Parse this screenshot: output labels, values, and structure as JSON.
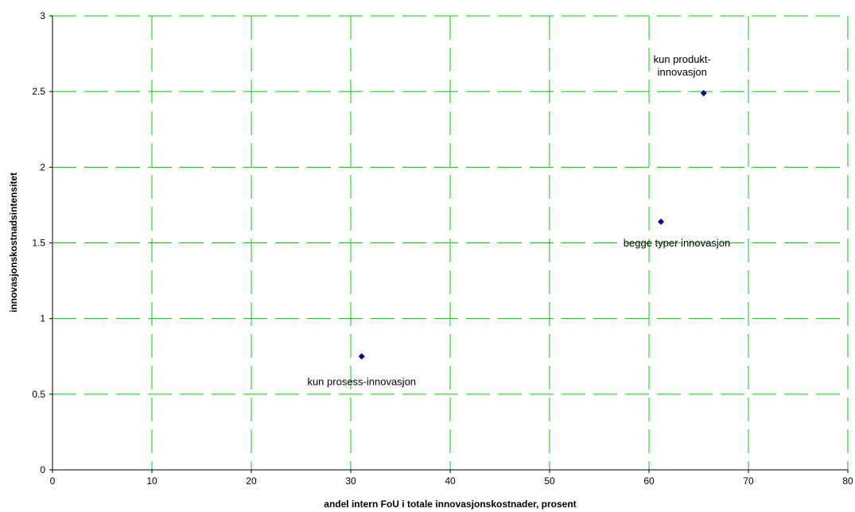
{
  "chart_data": {
    "type": "scatter",
    "title": "",
    "xlabel": "andel intern FoU i totale innovasjonskostnader, prosent",
    "ylabel": "innovasjonskostnadsintensitet",
    "xlim": [
      0,
      80
    ],
    "ylim": [
      0,
      3
    ],
    "xticks": [
      0,
      10,
      20,
      30,
      40,
      50,
      60,
      70,
      80
    ],
    "yticks": [
      0,
      0.5,
      1,
      1.5,
      2,
      2.5,
      3
    ],
    "grid": true,
    "grid_color": "#00cc00",
    "marker_color": "#000080",
    "points": [
      {
        "x": 31.1,
        "y": 0.75,
        "label": [
          "kun prosess-innovasjon"
        ]
      },
      {
        "x": 61.2,
        "y": 1.64,
        "label": [
          "begge typer innovasjon"
        ]
      },
      {
        "x": 65.5,
        "y": 2.49,
        "label": [
          "kun produkt-",
          "innovasjon"
        ]
      }
    ]
  }
}
